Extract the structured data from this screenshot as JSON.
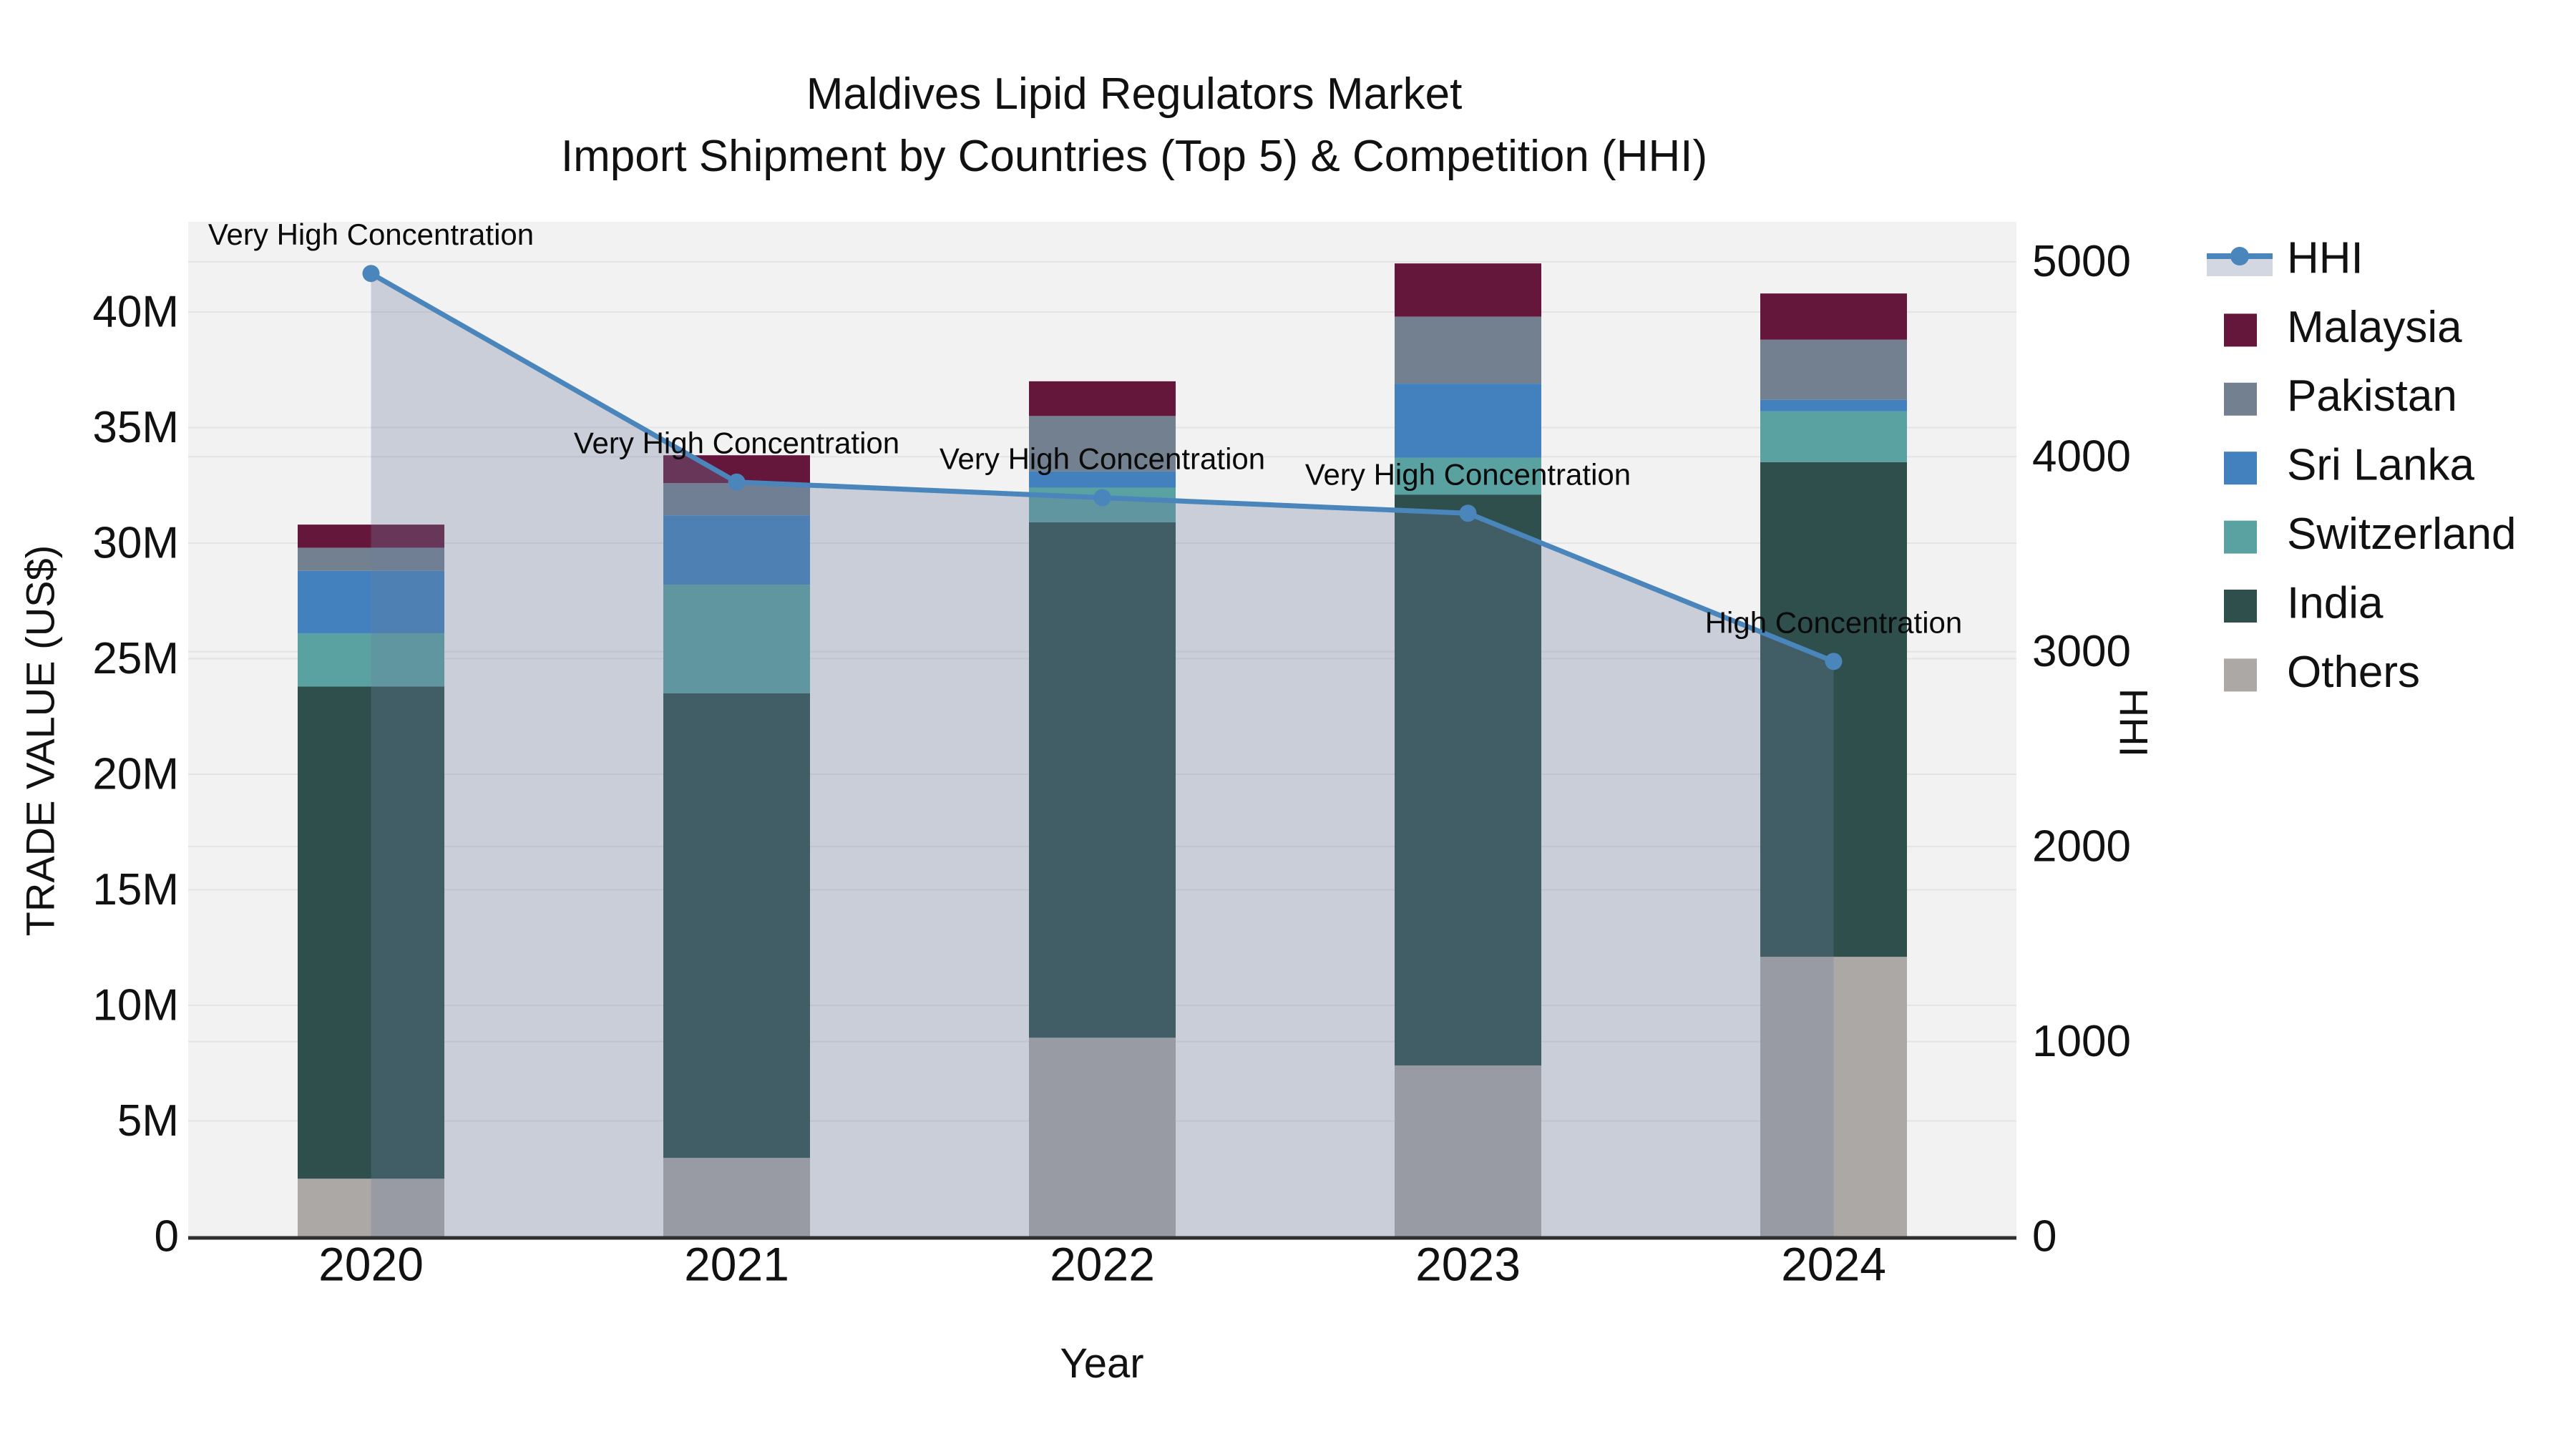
{
  "title": {
    "line1": "Maldives Lipid Regulators Market",
    "line2": "Import Shipment by Countries (Top 5) & Competition (HHI)"
  },
  "axes": {
    "x": {
      "title": "Year"
    },
    "left": {
      "title": "TRADE VALUE (US$)",
      "tick_labels": [
        "0",
        "5M",
        "10M",
        "15M",
        "20M",
        "25M",
        "30M",
        "35M",
        "40M"
      ],
      "tick_values": [
        0,
        5,
        10,
        15,
        20,
        25,
        30,
        35,
        40
      ],
      "max": 43.9
    },
    "right": {
      "title": "HHI",
      "tick_labels": [
        "0",
        "1000",
        "2000",
        "3000",
        "4000",
        "5000"
      ],
      "tick_values": [
        0,
        1000,
        2000,
        3000,
        4000,
        5000
      ],
      "max": 5205
    }
  },
  "legend": {
    "order": [
      "HHI",
      "Malaysia",
      "Pakistan",
      "Sri Lanka",
      "Switzerland",
      "India",
      "Others"
    ]
  },
  "chart_data": {
    "type": "combo: stacked-bar + line",
    "categories": [
      "2020",
      "2021",
      "2022",
      "2023",
      "2024"
    ],
    "bar_value_unit": "million US$ (trade value)",
    "series": [
      {
        "name": "Others",
        "color": "#ABA8A6",
        "values": [
          2.5,
          3.4,
          8.6,
          7.4,
          12.1
        ]
      },
      {
        "name": "India",
        "color": "#2E4F4C",
        "values": [
          21.3,
          20.1,
          22.3,
          24.7,
          21.4
        ]
      },
      {
        "name": "Switzerland",
        "color": "#5AA1A1",
        "values": [
          2.3,
          4.7,
          1.5,
          1.6,
          2.2
        ]
      },
      {
        "name": "Sri Lanka",
        "color": "#4281BD",
        "values": [
          2.7,
          3.0,
          0.7,
          3.2,
          0.5
        ]
      },
      {
        "name": "Pakistan",
        "color": "#72808F",
        "values": [
          1.0,
          1.4,
          2.4,
          2.9,
          2.6
        ]
      },
      {
        "name": "Malaysia",
        "color": "#65163B",
        "values": [
          1.0,
          1.2,
          1.5,
          2.3,
          2.0
        ]
      }
    ],
    "bar_totals": [
      30.8,
      33.8,
      37.0,
      42.1,
      40.8
    ],
    "line": {
      "name": "HHI",
      "color": "#4A86BC",
      "area_fill": "rgba(110,126,158,0.31)",
      "values": [
        4940,
        3870,
        3790,
        3710,
        2950
      ]
    },
    "annotations": [
      {
        "category": "2020",
        "text": "Very High Concentration"
      },
      {
        "category": "2021",
        "text": "Very High Concentration"
      },
      {
        "category": "2022",
        "text": "Very High Concentration"
      },
      {
        "category": "2023",
        "text": "Very High Concentration"
      },
      {
        "category": "2024",
        "text": "High Concentration"
      }
    ],
    "layout_hints": {
      "plot_background": "#f2f2f2",
      "gridline_color": "#e4e4e6",
      "axis_line_color": "#2f2f2f",
      "text_color": "#111111",
      "legend_position": "right",
      "grid": "on"
    }
  }
}
